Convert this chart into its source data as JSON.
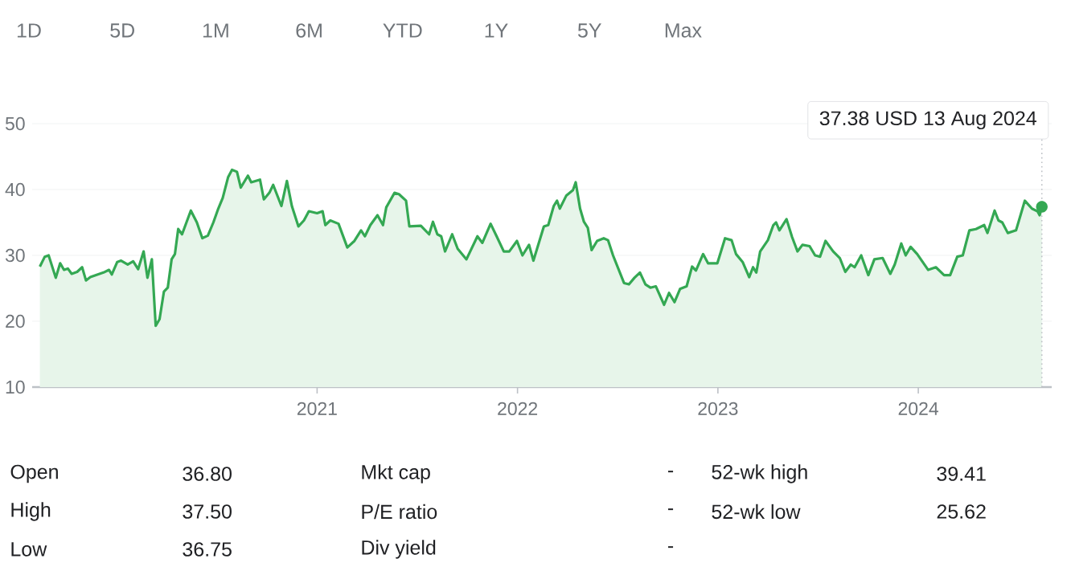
{
  "chart_data": [
    {
      "type": "other",
      "annotations": [
        "1D",
        "5D",
        "1M",
        "6M",
        "YTD",
        "1Y",
        "5Y",
        "Max"
      ]
    },
    {
      "type": "area",
      "color": "#34a853",
      "grid": "y",
      "x": [
        "2019-08-15",
        "2019-08-24",
        "2019-08-31",
        "2019-09-13",
        "2019-09-21",
        "2019-09-28",
        "2019-10-05",
        "2019-10-12",
        "2019-10-22",
        "2019-10-31",
        "2019-11-07",
        "2019-11-15",
        "2019-12-09",
        "2019-12-19",
        "2019-12-24",
        "2020-01-03",
        "2020-01-10",
        "2020-01-22",
        "2020-02-01",
        "2020-02-10",
        "2020-02-20",
        "2020-02-27",
        "2020-03-06",
        "2020-03-13",
        "2020-03-20",
        "2020-03-28",
        "2020-04-04",
        "2020-04-11",
        "2020-04-17",
        "2020-04-23",
        "2020-04-30",
        "2020-05-16",
        "2020-05-27",
        "2020-06-06",
        "2020-06-16",
        "2020-06-26",
        "2020-07-05",
        "2020-07-13",
        "2020-07-23",
        "2020-07-30",
        "2020-08-08",
        "2020-08-15",
        "2020-08-28",
        "2020-09-03",
        "2020-09-19",
        "2020-09-26",
        "2020-10-06",
        "2020-10-13",
        "2020-10-28",
        "2020-11-07",
        "2020-11-16",
        "2020-11-28",
        "2020-12-08",
        "2020-12-17",
        "2021-01-01",
        "2021-01-11",
        "2021-01-16",
        "2021-01-25",
        "2021-02-09",
        "2021-02-25",
        "2021-03-10",
        "2021-03-22",
        "2021-03-29",
        "2021-04-08",
        "2021-04-21",
        "2021-05-01",
        "2021-05-07",
        "2021-05-22",
        "2021-05-30",
        "2021-06-12",
        "2021-06-18",
        "2021-07-09",
        "2021-07-24",
        "2021-07-31",
        "2021-08-08",
        "2021-08-15",
        "2021-08-22",
        "2021-09-04",
        "2021-09-14",
        "2021-09-30",
        "2021-10-20",
        "2021-10-29",
        "2021-11-13",
        "2021-11-24",
        "2021-12-07",
        "2021-12-17",
        "2021-12-31",
        "2022-01-10",
        "2022-01-22",
        "2022-01-30",
        "2022-02-18",
        "2022-02-26",
        "2022-03-08",
        "2022-03-14",
        "2022-03-19",
        "2022-03-31",
        "2022-04-12",
        "2022-04-17",
        "2022-04-25",
        "2022-05-02",
        "2022-05-09",
        "2022-05-16",
        "2022-05-26",
        "2022-06-07",
        "2022-06-15",
        "2022-06-24",
        "2022-07-14",
        "2022-07-23",
        "2022-08-02",
        "2022-08-12",
        "2022-08-22",
        "2022-08-31",
        "2022-09-10",
        "2022-09-25",
        "2022-10-04",
        "2022-10-14",
        "2022-10-24",
        "2022-11-05",
        "2022-11-15",
        "2022-11-22",
        "2022-12-05",
        "2022-12-14",
        "2022-12-31",
        "2023-01-14",
        "2023-01-26",
        "2023-02-03",
        "2023-02-15",
        "2023-02-27",
        "2023-03-06",
        "2023-03-12",
        "2023-03-19",
        "2023-04-02",
        "2023-04-12",
        "2023-04-17",
        "2023-04-23",
        "2023-05-06",
        "2023-05-16",
        "2023-05-26",
        "2023-06-04",
        "2023-06-17",
        "2023-06-27",
        "2023-07-06",
        "2023-07-16",
        "2023-07-30",
        "2023-08-11",
        "2023-08-21",
        "2023-08-31",
        "2023-09-07",
        "2023-09-19",
        "2023-10-02",
        "2023-10-13",
        "2023-10-28",
        "2023-11-11",
        "2023-11-19",
        "2023-12-01",
        "2023-12-09",
        "2023-12-18",
        "2023-12-30",
        "2024-01-19",
        "2024-02-02",
        "2024-02-17",
        "2024-02-28",
        "2024-03-12",
        "2024-03-22",
        "2024-04-03",
        "2024-04-15",
        "2024-04-30",
        "2024-05-06",
        "2024-05-19",
        "2024-05-26",
        "2024-06-02",
        "2024-06-12",
        "2024-06-27",
        "2024-07-13",
        "2024-07-26",
        "2024-08-05",
        "2024-08-09",
        "2024-08-13"
      ],
      "values": [
        28.3,
        29.8,
        30.0,
        26.6,
        28.8,
        27.8,
        28.0,
        27.2,
        27.5,
        28.2,
        26.2,
        26.7,
        27.4,
        27.8,
        27.1,
        29.0,
        29.2,
        28.6,
        29.1,
        27.9,
        30.6,
        26.6,
        29.4,
        19.3,
        20.3,
        24.5,
        25.1,
        29.4,
        30.2,
        34.0,
        33.2,
        36.8,
        35.0,
        32.6,
        33.0,
        35.0,
        37.1,
        38.7,
        41.9,
        43.0,
        42.7,
        40.3,
        42.1,
        41.1,
        41.5,
        38.5,
        39.5,
        40.7,
        37.5,
        41.3,
        37.5,
        34.4,
        35.3,
        36.7,
        36.4,
        36.7,
        34.6,
        35.3,
        34.8,
        31.2,
        32.2,
        33.8,
        32.9,
        34.6,
        36.1,
        34.6,
        37.3,
        39.5,
        39.3,
        38.3,
        34.4,
        34.5,
        33.2,
        35.1,
        33.2,
        32.9,
        30.6,
        33.2,
        31.0,
        29.4,
        32.9,
        31.9,
        34.8,
        32.9,
        30.6,
        30.6,
        32.2,
        30.0,
        31.6,
        29.2,
        34.4,
        34.6,
        37.5,
        38.3,
        37.1,
        39.1,
        39.9,
        41.1,
        37.1,
        35.1,
        34.2,
        30.8,
        32.2,
        32.6,
        32.3,
        30.0,
        25.8,
        25.6,
        26.6,
        27.4,
        25.6,
        25.1,
        25.3,
        22.5,
        24.3,
        22.9,
        24.9,
        25.3,
        28.3,
        27.7,
        30.2,
        28.8,
        28.8,
        32.6,
        32.3,
        30.2,
        29.0,
        26.7,
        28.2,
        27.4,
        30.6,
        32.3,
        34.6,
        35.0,
        33.8,
        35.5,
        32.8,
        30.6,
        31.6,
        31.4,
        30.0,
        29.8,
        32.2,
        30.6,
        29.6,
        27.5,
        28.6,
        28.2,
        30.0,
        27.0,
        29.4,
        29.6,
        27.2,
        28.6,
        31.8,
        30.0,
        31.3,
        30.2,
        27.8,
        28.2,
        27.0,
        27.0,
        29.8,
        30.0,
        33.8,
        34.0,
        34.6,
        33.4,
        36.8,
        35.3,
        35.0,
        33.4,
        33.8,
        38.3,
        37.1,
        36.7,
        36.1,
        37.38
      ],
      "xlim": [
        "2019-08-01",
        "2024-08-31"
      ],
      "xticks": [
        "2021",
        "2022",
        "2023",
        "2024"
      ],
      "ylim": [
        10,
        50
      ],
      "yticks": [
        10,
        20,
        30,
        40,
        50
      ],
      "ref_lines": [
        {
          "axis": "x",
          "value": "2024-08-13",
          "color": "#bdc1c6",
          "line_style": "dotted"
        }
      ],
      "annotations": [
        "37.38 USD 13 Aug 2024"
      ]
    },
    {
      "type": "other",
      "annotations": [
        "Open",
        "36.80",
        "Mkt cap",
        "-",
        "52-wk high",
        "39.41",
        "High",
        "37.50",
        "P/E ratio",
        "-",
        "52-wk low",
        "25.62",
        "Low",
        "36.75",
        "Div yield",
        "-"
      ]
    }
  ]
}
